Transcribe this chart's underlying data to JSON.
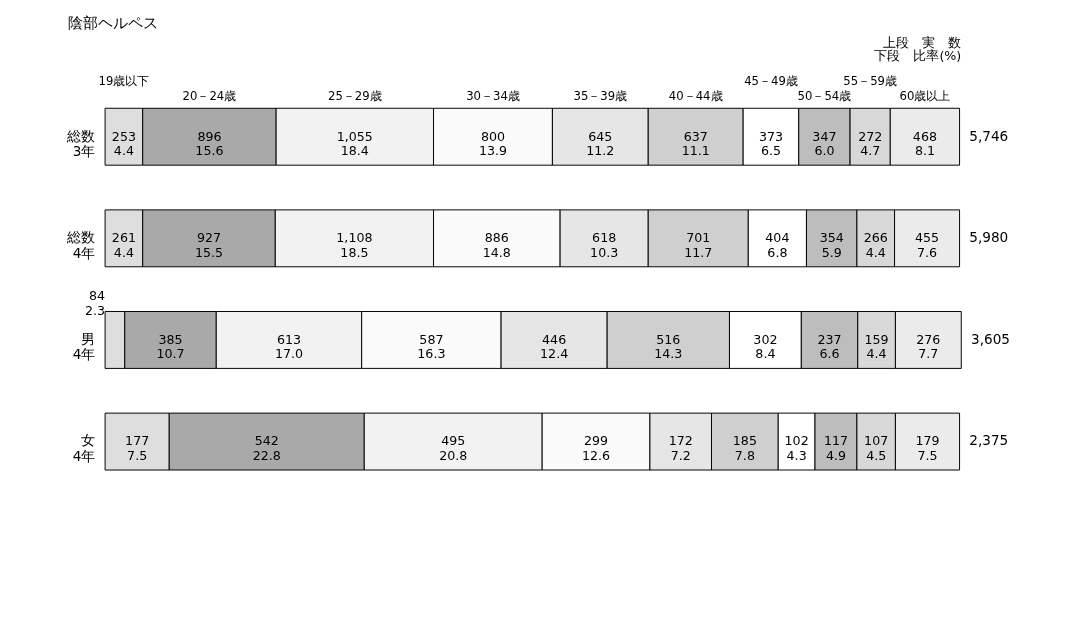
{
  "chart_data": {
    "type": "bar",
    "orientation": "horizontal",
    "stacked": true,
    "title": "陰部ヘルペス",
    "categories": [
      "総数\n3年",
      "総数\n4年",
      "男\n4年",
      "女\n4年"
    ],
    "series": [
      {
        "name": "19歳以下",
        "color": "#dedede",
        "values": [
          4.4,
          4.4,
          2.3,
          7.5
        ],
        "value_labels": [
          "253\n4.4",
          "261\n4.4",
          "84\n2.3",
          "177\n7.5"
        ]
      },
      {
        "name": "20－24歳",
        "color": "#a9a9a9",
        "values": [
          15.6,
          15.5,
          10.7,
          22.8
        ],
        "value_labels": [
          "896\n15.6",
          "927\n15.5",
          "385\n10.7",
          "542\n22.8"
        ]
      },
      {
        "name": "25－29歳",
        "color": "#f2f2f2",
        "values": [
          18.4,
          18.5,
          17.0,
          20.8
        ],
        "value_labels": [
          "1,055\n18.4",
          "1,108\n18.5",
          "613\n17.0",
          "495\n20.8"
        ]
      },
      {
        "name": "30－34歳",
        "color": "#fafafa",
        "values": [
          13.9,
          14.8,
          16.3,
          12.6
        ],
        "value_labels": [
          "800\n13.9",
          "886\n14.8",
          "587\n16.3",
          "299\n12.6"
        ]
      },
      {
        "name": "35－39歳",
        "color": "#e6e6e6",
        "values": [
          11.2,
          10.3,
          12.4,
          7.2
        ],
        "value_labels": [
          "645\n11.2",
          "618\n10.3",
          "446\n12.4",
          "172\n7.2"
        ]
      },
      {
        "name": "40－44歳",
        "color": "#cfcfcf",
        "values": [
          11.1,
          11.7,
          14.3,
          7.8
        ],
        "value_labels": [
          "637\n11.1",
          "701\n11.7",
          "516\n14.3",
          "185\n7.8"
        ]
      },
      {
        "name": "45－49歳",
        "color": "#ffffff",
        "values": [
          6.5,
          6.8,
          8.4,
          4.3
        ],
        "value_labels": [
          "373\n6.5",
          "404\n6.8",
          "302\n8.4",
          "102\n4.3"
        ]
      },
      {
        "name": "50－54歳",
        "color": "#bdbdbd",
        "values": [
          6.0,
          5.9,
          6.6,
          4.9
        ],
        "value_labels": [
          "347\n6.0",
          "354\n5.9",
          "237\n6.6",
          "117\n4.9"
        ]
      },
      {
        "name": "55－59歳",
        "color": "#d8d8d8",
        "values": [
          4.7,
          4.4,
          4.4,
          4.5
        ],
        "value_labels": [
          "272\n4.7",
          "266\n4.4",
          "159\n4.4",
          "107\n4.5"
        ]
      },
      {
        "name": "60歳以上",
        "color": "#ebebeb",
        "values": [
          8.1,
          7.6,
          7.7,
          7.5
        ],
        "value_labels": [
          "468\n8.1",
          "455\n7.6",
          "276\n7.7",
          "179\n7.5"
        ]
      }
    ],
    "annotations": [
      "上段　実　数",
      "下段　比率(%)",
      "5,746",
      "5,980",
      "3,605",
      "2,375"
    ]
  }
}
